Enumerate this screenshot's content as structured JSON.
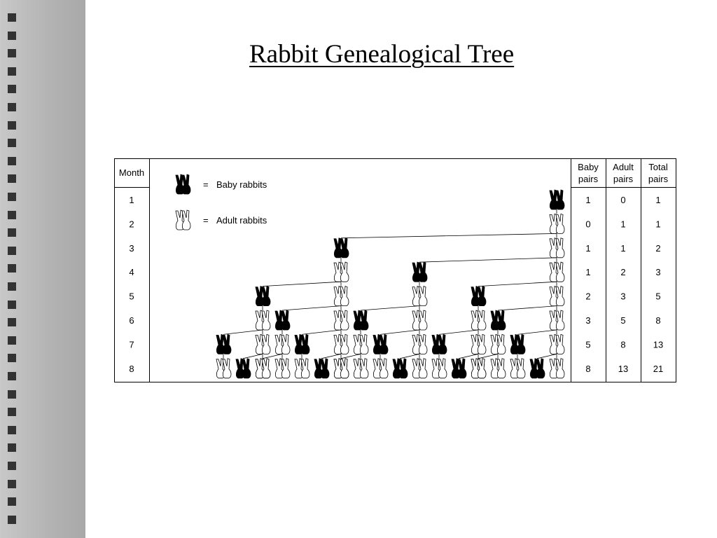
{
  "slide": {
    "title": "Rabbit Genealogical Tree"
  },
  "table": {
    "headers": {
      "month": "Month",
      "baby": [
        "Baby",
        "pairs"
      ],
      "adult": [
        "Adult",
        "pairs"
      ],
      "total": [
        "Total",
        "pairs"
      ]
    },
    "legend": {
      "baby_label": "Baby rabbits",
      "adult_label": "Adult rabbits",
      "equals": "="
    },
    "rows": [
      {
        "month": "1",
        "baby": "1",
        "adult": "0",
        "total": "1"
      },
      {
        "month": "2",
        "baby": "0",
        "adult": "1",
        "total": "1"
      },
      {
        "month": "3",
        "baby": "1",
        "adult": "1",
        "total": "2"
      },
      {
        "month": "4",
        "baby": "1",
        "adult": "2",
        "total": "3"
      },
      {
        "month": "5",
        "baby": "2",
        "adult": "3",
        "total": "5"
      },
      {
        "month": "6",
        "baby": "3",
        "adult": "5",
        "total": "8"
      },
      {
        "month": "7",
        "baby": "5",
        "adult": "8",
        "total": "13"
      },
      {
        "month": "8",
        "baby": "8",
        "adult": "13",
        "total": "21"
      }
    ]
  },
  "colors": {
    "baby_icon": "#000000",
    "adult_icon": "#ffffff",
    "sidebar_square": "#333333"
  },
  "icons": {
    "baby": "baby-rabbit-pair-icon",
    "adult": "adult-rabbit-pair-icon"
  }
}
